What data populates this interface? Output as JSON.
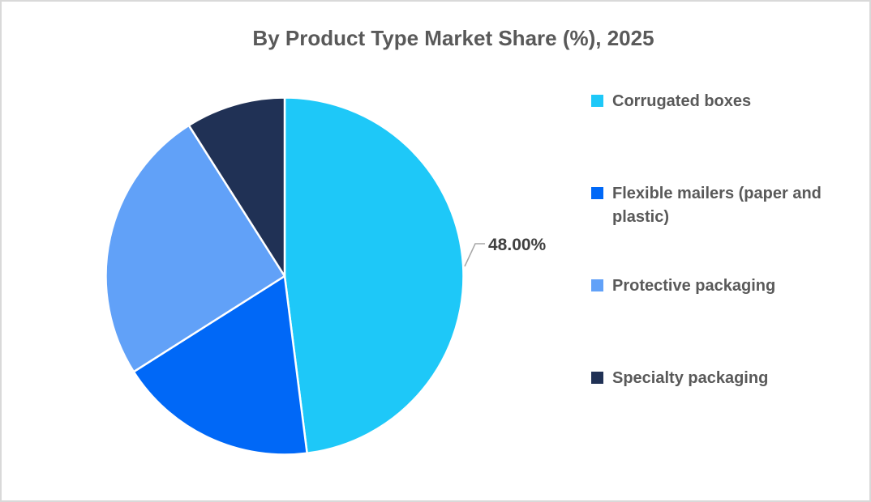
{
  "chart_data": {
    "type": "pie",
    "title": "By Product Type Market Share (%), 2025",
    "categories": [
      "Corrugated boxes",
      "Flexible mailers (paper and plastic)",
      "Protective packaging",
      "Specialty packaging"
    ],
    "values": [
      48,
      18,
      25,
      9
    ],
    "colors": [
      "#1EC8F8",
      "#0068F7",
      "#61A1F8",
      "#203155"
    ],
    "start_angle_deg": 0,
    "direction": "clockwise",
    "legend_position": "right",
    "slice_border_color": "#FFFFFF",
    "data_labels": [
      {
        "slice_index": 0,
        "text": "48.00%"
      }
    ]
  },
  "styles": {
    "title_color": "#595959",
    "legend_text_color": "#595959",
    "data_label_color": "#404040",
    "leader_line_color": "#A6A6A6",
    "page_border_color": "#D9D9D9",
    "background_color": "#FFFFFF"
  }
}
